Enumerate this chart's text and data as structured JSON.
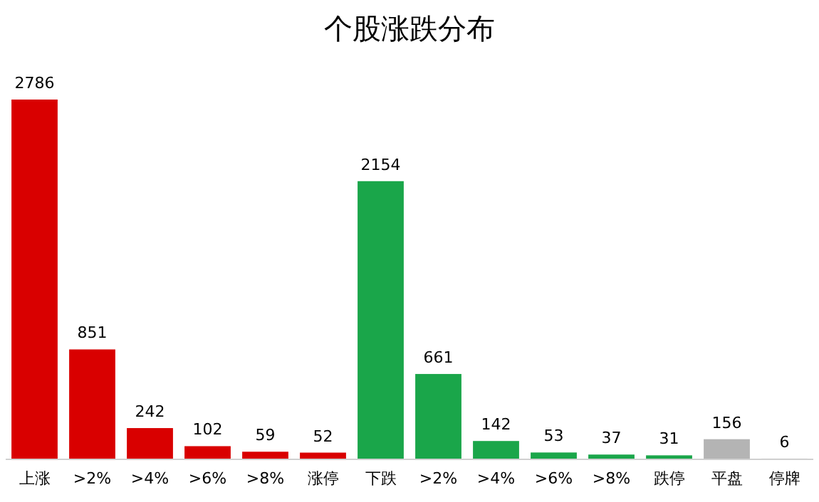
{
  "chart_data": {
    "type": "bar",
    "title": "个股涨跌分布",
    "categories": [
      "上涨",
      ">2%",
      ">4%",
      ">6%",
      ">8%",
      "涨停",
      "下跌",
      ">2%",
      ">4%",
      ">6%",
      ">8%",
      "跌停",
      "平盘",
      "停牌"
    ],
    "values": [
      2786,
      851,
      242,
      102,
      59,
      52,
      2154,
      661,
      142,
      53,
      37,
      31,
      156,
      6
    ],
    "colors": [
      "#d90000",
      "#d90000",
      "#d90000",
      "#d90000",
      "#d90000",
      "#d90000",
      "#1aa64a",
      "#1aa64a",
      "#1aa64a",
      "#1aa64a",
      "#1aa64a",
      "#1aa64a",
      "#b4b4b4",
      "#b4b4b4"
    ],
    "data_labels": true
  }
}
